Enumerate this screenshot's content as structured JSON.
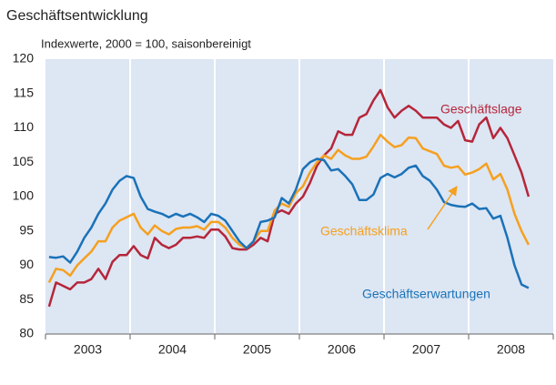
{
  "chart_data": {
    "type": "line",
    "title": "Geschäftsentwicklung",
    "subtitle": "Indexwerte, 2000 = 100, saisonbereinigt",
    "categories": [
      "2003",
      null,
      null,
      null,
      null,
      null,
      null,
      null,
      null,
      null,
      null,
      null,
      "2004",
      null,
      null,
      null,
      null,
      null,
      null,
      null,
      null,
      null,
      null,
      null,
      "2005",
      null,
      null,
      null,
      null,
      null,
      null,
      null,
      null,
      null,
      null,
      null,
      "2006",
      null,
      null,
      null,
      null,
      null,
      null,
      null,
      null,
      null,
      null,
      null,
      "2007",
      null,
      null,
      null,
      null,
      null,
      null,
      null,
      null,
      null,
      null,
      null,
      "2008",
      null,
      null,
      null,
      null,
      null,
      null,
      null,
      null
    ],
    "series": [
      {
        "name": "Geschäftslage",
        "color": "#b5263a",
        "values": [
          84,
          87.5,
          87,
          86.5,
          87.5,
          87.5,
          88,
          89.5,
          88,
          90.5,
          91.5,
          91.5,
          92.8,
          91.5,
          91,
          94,
          93,
          92.5,
          93,
          94,
          94,
          94.2,
          94,
          95.2,
          95.2,
          94.2,
          92.5,
          92.3,
          92.3,
          93,
          94,
          93.5,
          97.5,
          98,
          97.5,
          99,
          100,
          102,
          104.5,
          106,
          107,
          109.5,
          109,
          109,
          111.5,
          112,
          114,
          115.5,
          113,
          111.5,
          112.5,
          113.2,
          112.5,
          111.5,
          111.5,
          111.5,
          110.5,
          110,
          111,
          108.2,
          108,
          110.5,
          111.5,
          108.5,
          110,
          108.5,
          106,
          103.5,
          100
        ]
      },
      {
        "name": "Geschäftsklima",
        "color": "#f5a01f",
        "values": [
          87.5,
          89.5,
          89.3,
          88.5,
          90,
          91,
          92,
          93.5,
          93.5,
          95.5,
          96.5,
          97,
          97.5,
          95.5,
          94.5,
          95.8,
          95,
          94.5,
          95.3,
          95.5,
          95.5,
          95.7,
          95.2,
          96.3,
          96.3,
          95.5,
          94,
          93,
          92.5,
          93.5,
          95,
          95,
          98,
          99,
          98.5,
          100.5,
          101.5,
          103.5,
          105,
          106,
          105.5,
          106.8,
          106,
          105.5,
          105.5,
          105.8,
          107.3,
          109,
          108,
          107.2,
          107.5,
          108.6,
          108.5,
          107,
          106.6,
          106.2,
          104.5,
          104.2,
          104.4,
          103.2,
          103.5,
          104,
          104.8,
          102.5,
          103.3,
          101,
          97.5,
          95,
          93
        ]
      },
      {
        "name": "Geschäftserwartungen",
        "color": "#1a72b8",
        "values": [
          91.2,
          91.1,
          91.3,
          90.4,
          92,
          94,
          95.5,
          97.5,
          99,
          101,
          102.3,
          103,
          102.7,
          100,
          98.2,
          97.8,
          97.5,
          97,
          97.5,
          97.1,
          97.5,
          97,
          96.3,
          97.5,
          97.2,
          96.5,
          95,
          93.5,
          92.5,
          93.5,
          96.3,
          96.5,
          97,
          99.8,
          99,
          101,
          104,
          105,
          105.5,
          105.3,
          103.8,
          104,
          103,
          101.8,
          99.5,
          99.5,
          100.3,
          102.7,
          103.3,
          102.8,
          103.3,
          104.2,
          104.5,
          103,
          102.3,
          101,
          99.2,
          98.8,
          98.6,
          98.5,
          99,
          98.2,
          98.3,
          96.8,
          97.2,
          94,
          90,
          87.2,
          86.7
        ]
      }
    ],
    "ylim": [
      80,
      120
    ],
    "yticks": [
      80,
      85,
      90,
      95,
      100,
      105,
      110,
      115,
      120
    ],
    "grid": false
  }
}
